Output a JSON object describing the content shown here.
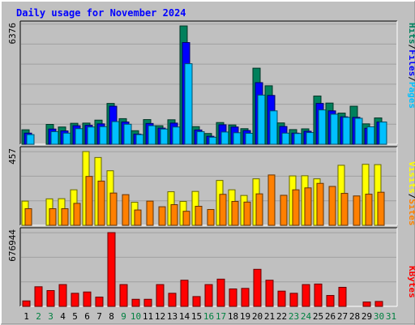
{
  "chart_data": {
    "type": "bar",
    "title": "Daily usage for November 2024",
    "categories": [
      "1",
      "2",
      "3",
      "4",
      "5",
      "6",
      "7",
      "8",
      "9",
      "10",
      "11",
      "12",
      "13",
      "14",
      "15",
      "16",
      "17",
      "18",
      "19",
      "20",
      "21",
      "22",
      "23",
      "24",
      "25",
      "26",
      "27",
      "28",
      "29",
      "30",
      "31"
    ],
    "weekend_categories": [
      "2",
      "3",
      "9",
      "10",
      "16",
      "17",
      "23",
      "24",
      "30",
      "31"
    ],
    "panels": [
      {
        "name": "traffic",
        "ymax_label": "6376",
        "ymax": 6376,
        "legend": [
          "Pages",
          "/",
          "Files",
          "/",
          "Hits"
        ],
        "series": [
          {
            "name": "Hits",
            "color": "#00805c",
            "values": [
              780,
              0,
              1070,
              930,
              1130,
              1140,
              1300,
              2200,
              1380,
              730,
              1330,
              1000,
              1320,
              6376,
              950,
              580,
              1170,
              1040,
              840,
              4100,
              3150,
              1150,
              790,
              830,
              2600,
              2220,
              1680,
              2050,
              1100,
              1420,
              0
            ]
          },
          {
            "name": "Files",
            "color": "#0000ff",
            "values": [
              600,
              0,
              820,
              720,
              1000,
              1020,
              1100,
              2050,
              1200,
              550,
              1120,
              870,
              1140,
              5480,
              770,
              430,
              1050,
              930,
              740,
              3320,
              2630,
              960,
              600,
              700,
              2200,
              1800,
              1480,
              1450,
              860,
              1200,
              0
            ]
          },
          {
            "name": "Pages",
            "color": "#00c0ff",
            "values": [
              520,
              0,
              680,
              600,
              840,
              930,
              950,
              1220,
              1080,
              520,
              1000,
              820,
              930,
              4340,
              680,
              380,
              660,
              620,
              590,
              2650,
              1800,
              600,
              580,
              630,
              1850,
              1620,
              1450,
              1400,
              940,
              1200,
              0
            ]
          }
        ]
      },
      {
        "name": "visits",
        "ymax_label": "457",
        "ymax": 457,
        "legend": [
          "Sites",
          "/",
          "Visits"
        ],
        "series": [
          {
            "name": "Visits",
            "color": "#ffff00",
            "values": [
              150,
              0,
              164,
              165,
              220,
              457,
              420,
              338,
              0,
              143,
              0,
              0,
              208,
              148,
              210,
              0,
              278,
              220,
              185,
              288,
              0,
              0,
              306,
              307,
              288,
              0,
              372,
              0,
              378,
              376,
              0
            ]
          },
          {
            "name": "Sites",
            "color": "#ff8000",
            "values": [
              103,
              0,
              103,
              103,
              136,
              303,
              274,
              200,
              190,
              95,
              150,
              115,
              128,
              87,
              118,
              98,
              192,
              148,
              144,
              195,
              312,
              186,
              220,
              232,
              260,
              241,
              198,
              182,
              193,
              205,
              0
            ]
          }
        ]
      },
      {
        "name": "kbytes",
        "ymax_label": "676944",
        "ymax": 676944,
        "legend": [
          "KBytes"
        ],
        "series": [
          {
            "name": "KBytes",
            "color": "#ff0000",
            "values": [
              50000,
              180000,
              145000,
              200000,
              120000,
              132000,
              85000,
              676944,
              200000,
              65000,
              65000,
              200000,
              120000,
              240000,
              90000,
              200000,
              250000,
              160000,
              165000,
              340000,
              240000,
              140000,
              120000,
              200000,
              205000,
              100000,
              175000,
              0,
              40000,
              45000,
              0
            ]
          }
        ]
      }
    ],
    "colors": {
      "background": "#c0c0c0",
      "title": "#0000ff",
      "weekday_label": "#000000",
      "weekend_label": "#008040",
      "grid": "#a0a0a0"
    }
  }
}
